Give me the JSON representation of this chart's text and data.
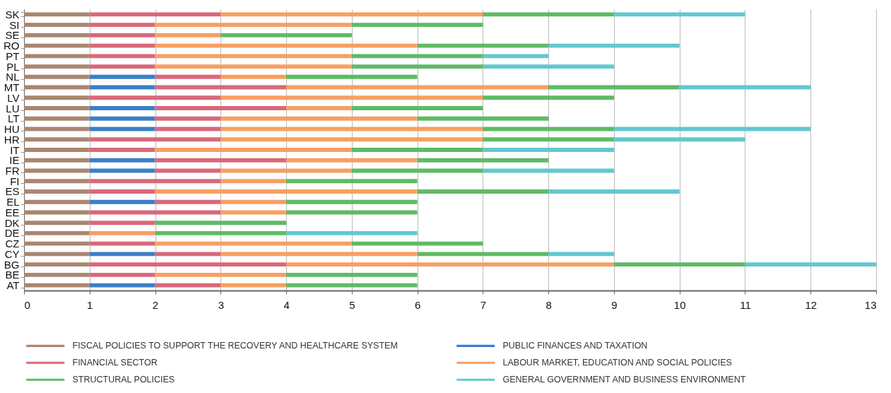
{
  "chart_data": {
    "type": "bar",
    "orientation": "horizontal",
    "stacked": true,
    "categories": [
      "SK",
      "SI",
      "SE",
      "RO",
      "PT",
      "PL",
      "NL",
      "MT",
      "LV",
      "LU",
      "LT",
      "HU",
      "HR",
      "IT",
      "IE",
      "FR",
      "FI",
      "ES",
      "EL",
      "EE",
      "DK",
      "DE",
      "CZ",
      "CY",
      "BG",
      "BE",
      "AT"
    ],
    "series": [
      {
        "name": "FISCAL POLICIES TO SUPPORT THE RECOVERY AND HEALTHCARE SYSTEM",
        "color": "#a98670",
        "values": [
          1,
          1,
          1,
          1,
          1,
          1,
          1,
          1,
          1,
          1,
          1,
          1,
          1,
          1,
          1,
          1,
          1,
          1,
          1,
          1,
          1,
          1,
          1,
          1,
          1,
          1,
          1
        ]
      },
      {
        "name": "PUBLIC FINANCES AND TAXATION",
        "color": "#3b7fc8",
        "values": [
          0,
          0,
          0,
          0,
          0,
          0,
          1,
          1,
          0,
          1,
          1,
          1,
          0,
          0,
          1,
          1,
          0,
          0,
          1,
          0,
          0,
          0,
          0,
          1,
          0,
          0,
          1
        ]
      },
      {
        "name": "FINANCIAL SECTOR",
        "color": "#d9687a",
        "values": [
          2,
          1,
          1,
          1,
          1,
          1,
          1,
          2,
          2,
          2,
          1,
          1,
          2,
          1,
          2,
          1,
          2,
          1,
          1,
          2,
          1,
          0,
          1,
          1,
          3,
          1,
          1
        ]
      },
      {
        "name": "LABOUR MARKET, EDUCATION AND SOCIAL POLICIES",
        "color": "#f79f62",
        "values": [
          4,
          3,
          1,
          4,
          3,
          3,
          1,
          4,
          4,
          1,
          3,
          4,
          4,
          3,
          2,
          2,
          1,
          4,
          1,
          1,
          0,
          1,
          3,
          3,
          5,
          2,
          1
        ]
      },
      {
        "name": "STRUCTURAL POLICIES",
        "color": "#5fba66",
        "values": [
          2,
          2,
          2,
          2,
          2,
          2,
          2,
          2,
          2,
          2,
          2,
          2,
          2,
          2,
          2,
          2,
          2,
          2,
          2,
          2,
          2,
          2,
          2,
          2,
          2,
          2,
          2
        ]
      },
      {
        "name": "GENERAL GOVERNMENT AND BUSINESS ENVIRONMENT",
        "color": "#62c8d0",
        "values": [
          2,
          0,
          0,
          2,
          1,
          2,
          0,
          2,
          0,
          0,
          0,
          3,
          2,
          2,
          0,
          2,
          0,
          2,
          0,
          0,
          0,
          2,
          0,
          1,
          2,
          0,
          0
        ]
      }
    ],
    "xlim": [
      0,
      13
    ],
    "xticks": [
      0,
      1,
      2,
      3,
      4,
      5,
      6,
      7,
      8,
      9,
      10,
      11,
      12,
      13
    ],
    "grid": "x",
    "legend": "bottom"
  }
}
